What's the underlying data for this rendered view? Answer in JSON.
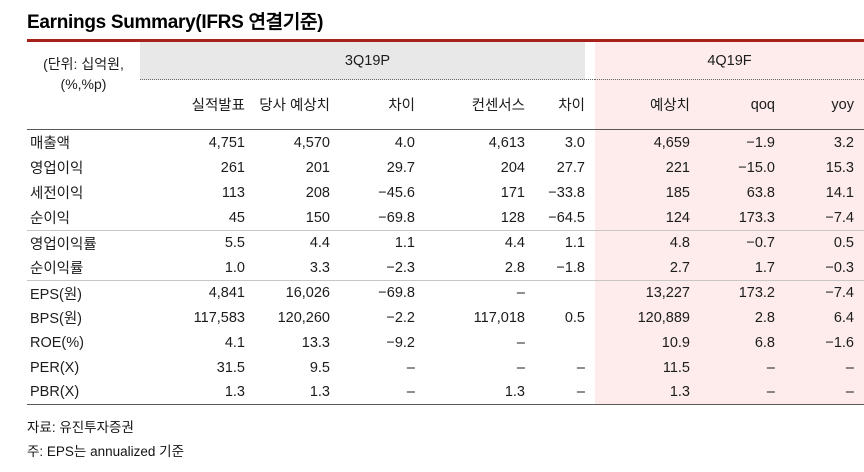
{
  "title": "Earnings Summary(IFRS 연결기준)",
  "table": {
    "unit_line1": "(단위: 십억원,",
    "unit_line2": "(%,%p)",
    "groups": [
      {
        "label": "3Q19P",
        "columns": [
          "실적발표",
          "당사 예상치",
          "차이",
          "컨센서스",
          "차이"
        ]
      },
      {
        "label": "4Q19F",
        "columns": [
          "예상치",
          "qoq",
          "yoy"
        ]
      }
    ],
    "rows": [
      {
        "label": "매출액",
        "values": [
          "4,751",
          "4,570",
          "4.0",
          "4,613",
          "3.0",
          "4,659",
          "−1.9",
          "3.2"
        ]
      },
      {
        "label": "영업이익",
        "values": [
          "261",
          "201",
          "29.7",
          "204",
          "27.7",
          "221",
          "−15.0",
          "15.3"
        ]
      },
      {
        "label": "세전이익",
        "values": [
          "113",
          "208",
          "−45.6",
          "171",
          "−33.8",
          "185",
          "63.8",
          "14.1"
        ]
      },
      {
        "label": "순이익",
        "values": [
          "45",
          "150",
          "−69.8",
          "128",
          "−64.5",
          "124",
          "173.3",
          "−7.4"
        ]
      },
      {
        "label": "영업이익률",
        "section_start": true,
        "values": [
          "5.5",
          "4.4",
          "1.1",
          "4.4",
          "1.1",
          "4.8",
          "−0.7",
          "0.5"
        ]
      },
      {
        "label": "순이익률",
        "values": [
          "1.0",
          "3.3",
          "−2.3",
          "2.8",
          "−1.8",
          "2.7",
          "1.7",
          "−0.3"
        ]
      },
      {
        "label": "EPS(원)",
        "section_start": true,
        "values": [
          "4,841",
          "16,026",
          "−69.8",
          "–",
          "",
          "13,227",
          "173.2",
          "−7.4"
        ]
      },
      {
        "label": "BPS(원)",
        "values": [
          "117,583",
          "120,260",
          "−2.2",
          "117,018",
          "0.5",
          "120,889",
          "2.8",
          "6.4"
        ]
      },
      {
        "label": "ROE(%)",
        "values": [
          "4.1",
          "13.3",
          "−9.2",
          "–",
          "",
          "10.9",
          "6.8",
          "−1.6"
        ]
      },
      {
        "label": "PER(X)",
        "values": [
          "31.5",
          "9.5",
          "–",
          "–",
          "–",
          "11.5",
          "–",
          "–"
        ]
      },
      {
        "label": "PBR(X)",
        "values": [
          "1.3",
          "1.3",
          "–",
          "1.3",
          "–",
          "1.3",
          "–",
          "–"
        ]
      }
    ]
  },
  "footer": {
    "source": "자료: 유진투자증권",
    "note": "주: EPS는 annualized 기준"
  },
  "colors": {
    "accent_red": "#a8201a",
    "header_gray": "#e8e8e8",
    "highlight_pink": "#fdeceb"
  }
}
